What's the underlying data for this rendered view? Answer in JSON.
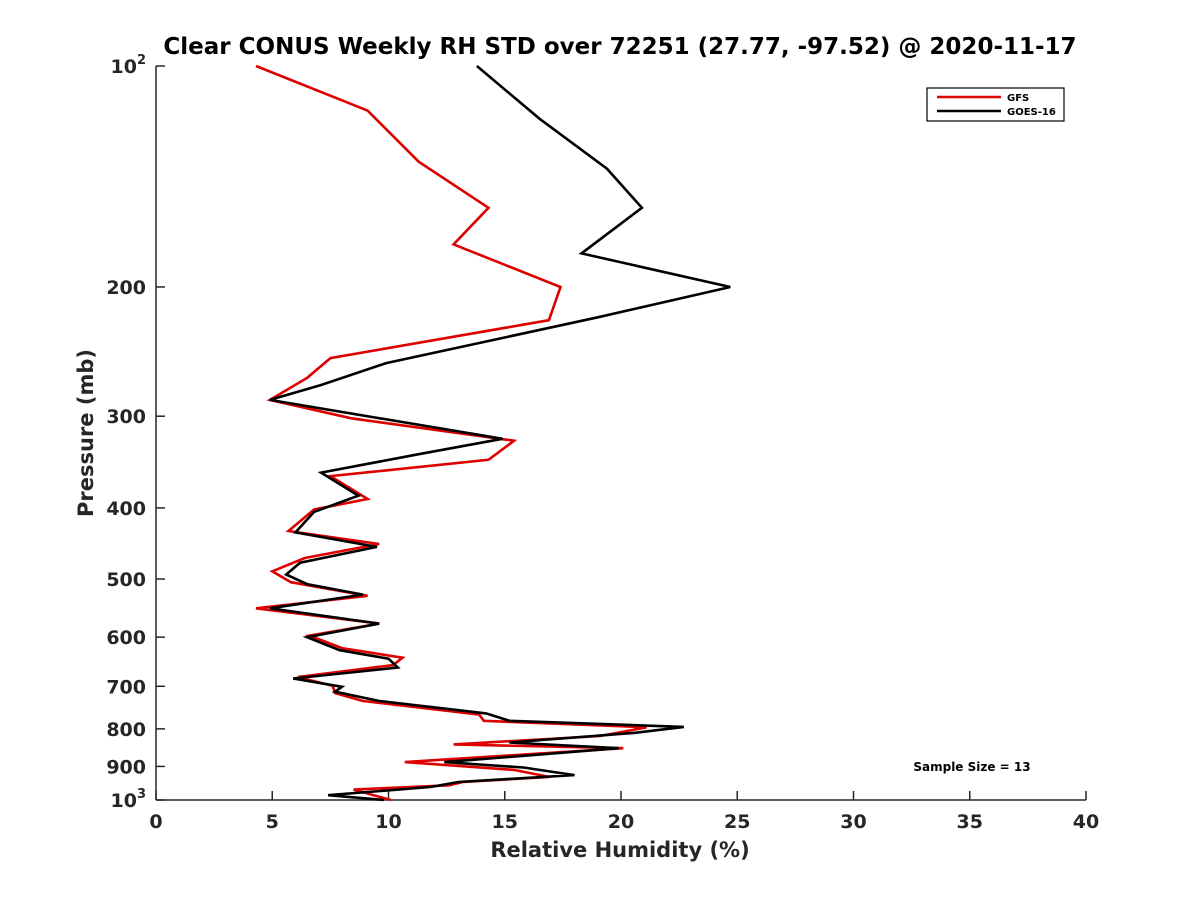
{
  "chart_data": {
    "type": "line",
    "title": "Clear CONUS Weekly RH STD over 72251 (27.77, -97.52) @ 2020-11-17",
    "xlabel": "Relative Humidity (%)",
    "ylabel": "Pressure (mb)",
    "xlim": [
      0,
      40
    ],
    "ylim": [
      100,
      1000
    ],
    "y_scale": "log",
    "y_reversed": true,
    "grid": false,
    "legend_position": "top-right",
    "x_ticks": [
      "0",
      "5",
      "10",
      "15",
      "20",
      "25",
      "30",
      "35",
      "40"
    ],
    "y_ticks": [
      {
        "value": 100,
        "base": "10",
        "exp": "2"
      },
      {
        "value": 200,
        "base": "200",
        "exp": ""
      },
      {
        "value": 300,
        "base": "300",
        "exp": ""
      },
      {
        "value": 400,
        "base": "400",
        "exp": ""
      },
      {
        "value": 500,
        "base": "500",
        "exp": ""
      },
      {
        "value": 600,
        "base": "600",
        "exp": ""
      },
      {
        "value": 700,
        "base": "700",
        "exp": ""
      },
      {
        "value": 800,
        "base": "800",
        "exp": ""
      },
      {
        "value": 900,
        "base": "900",
        "exp": ""
      },
      {
        "value": 1000,
        "base": "10",
        "exp": "3"
      }
    ],
    "annotation": "Sample Size = 13",
    "series": [
      {
        "name": "GFS",
        "color": "#dd0000",
        "points": [
          [
            4.3,
            100
          ],
          [
            9.1,
            115
          ],
          [
            11.3,
            135
          ],
          [
            14.3,
            156
          ],
          [
            12.8,
            175
          ],
          [
            17.4,
            200
          ],
          [
            16.9,
            222
          ],
          [
            7.5,
            250
          ],
          [
            6.5,
            266
          ],
          [
            4.9,
            285
          ],
          [
            8.4,
            302
          ],
          [
            15.4,
            324
          ],
          [
            14.3,
            344
          ],
          [
            7.5,
            362
          ],
          [
            9.1,
            389
          ],
          [
            6.8,
            402
          ],
          [
            5.7,
            430
          ],
          [
            9.6,
            448
          ],
          [
            6.4,
            468
          ],
          [
            5.0,
            488
          ],
          [
            5.8,
            505
          ],
          [
            9.1,
            527
          ],
          [
            4.3,
            548
          ],
          [
            9.6,
            575
          ],
          [
            6.6,
            597
          ],
          [
            8.0,
            621
          ],
          [
            10.6,
            640
          ],
          [
            10.2,
            655
          ],
          [
            6.1,
            680
          ],
          [
            7.6,
            699
          ],
          [
            7.7,
            715
          ],
          [
            8.9,
            733
          ],
          [
            13.9,
            765
          ],
          [
            14.1,
            780
          ],
          [
            21.1,
            796
          ],
          [
            19.1,
            818
          ],
          [
            12.8,
            840
          ],
          [
            20.1,
            850
          ],
          [
            10.7,
            888
          ],
          [
            15.4,
            910
          ],
          [
            16.9,
            930
          ],
          [
            13.2,
            945
          ],
          [
            12.6,
            955
          ],
          [
            8.5,
            968
          ],
          [
            10.1,
            1000
          ]
        ]
      },
      {
        "name": "GOES-16",
        "color": "#000000",
        "points": [
          [
            13.8,
            100
          ],
          [
            16.5,
            118
          ],
          [
            19.4,
            138
          ],
          [
            20.9,
            156
          ],
          [
            18.3,
            180
          ],
          [
            24.7,
            200
          ],
          [
            19.0,
            220
          ],
          [
            9.9,
            254
          ],
          [
            7.1,
            272
          ],
          [
            4.9,
            285
          ],
          [
            14.9,
            322
          ],
          [
            11.3,
            338
          ],
          [
            7.1,
            358
          ],
          [
            8.7,
            385
          ],
          [
            6.8,
            405
          ],
          [
            6.0,
            432
          ],
          [
            9.5,
            452
          ],
          [
            6.2,
            475
          ],
          [
            5.6,
            493
          ],
          [
            6.5,
            508
          ],
          [
            8.9,
            525
          ],
          [
            4.9,
            548
          ],
          [
            9.6,
            575
          ],
          [
            6.5,
            600
          ],
          [
            7.9,
            625
          ],
          [
            10.0,
            642
          ],
          [
            10.4,
            660
          ],
          [
            5.9,
            683
          ],
          [
            8.0,
            701
          ],
          [
            7.7,
            712
          ],
          [
            9.6,
            733
          ],
          [
            14.2,
            762
          ],
          [
            15.2,
            780
          ],
          [
            22.7,
            795
          ],
          [
            20.6,
            810
          ],
          [
            15.2,
            835
          ],
          [
            19.9,
            850
          ],
          [
            12.4,
            888
          ],
          [
            15.8,
            903
          ],
          [
            18.0,
            925
          ],
          [
            13.0,
            945
          ],
          [
            11.8,
            960
          ],
          [
            7.4,
            985
          ],
          [
            9.8,
            1000
          ]
        ]
      }
    ]
  }
}
